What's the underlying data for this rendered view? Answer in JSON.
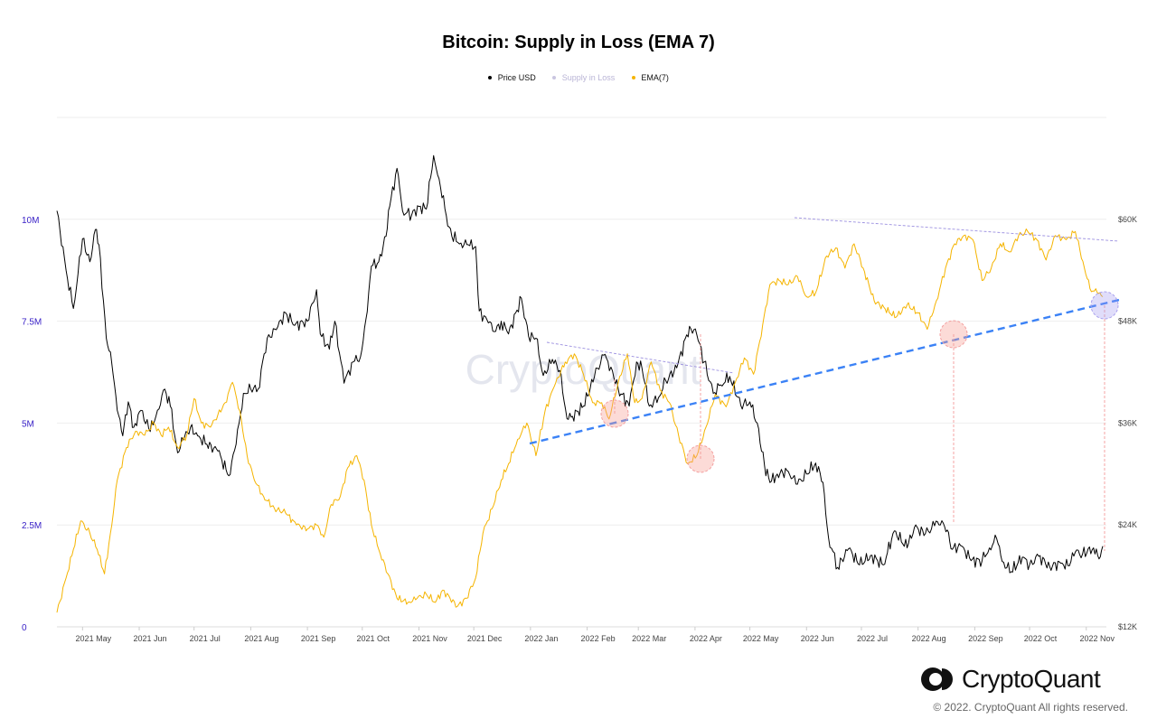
{
  "chart_data": {
    "type": "line",
    "title": "Bitcoin: Supply in Loss (EMA 7)",
    "legend": [
      {
        "name": "Price USD",
        "color": "#000000"
      },
      {
        "name": "Supply in Loss",
        "color": "#b9b4d6"
      },
      {
        "name": "EMA(7)",
        "color": "#f5b400"
      }
    ],
    "watermark": "CryptoQuant",
    "x_ticks": [
      "2021 May",
      "2021 Jun",
      "2021 Jul",
      "2021 Aug",
      "2021 Sep",
      "2021 Oct",
      "2021 Nov",
      "2021 Dec",
      "2022 Jan",
      "2022 Feb",
      "2022 Mar",
      "2022 Apr",
      "2022 May",
      "2022 Jun",
      "2022 Jul",
      "2022 Aug",
      "2022 Sep",
      "2022 Oct",
      "2022 Nov"
    ],
    "y_left": {
      "ticks": [
        "0",
        "2.5M",
        "5M",
        "7.5M",
        "10M"
      ],
      "range": [
        0,
        12500000
      ],
      "color": "#3a22c7"
    },
    "y_right": {
      "ticks": [
        "$12K",
        "$24K",
        "$36K",
        "$48K",
        "$60K"
      ],
      "range": [
        12000,
        72000
      ]
    },
    "x_range": [
      "2021-04-17",
      "2022-11-12"
    ],
    "grid": true,
    "series": [
      {
        "name": "Price USD",
        "axis": "right",
        "color": "#000000",
        "points": [
          [
            "2021-04-17",
            61000
          ],
          [
            "2021-04-22",
            54000
          ],
          [
            "2021-04-26",
            49500
          ],
          [
            "2021-05-01",
            57700
          ],
          [
            "2021-05-05",
            55000
          ],
          [
            "2021-05-08",
            58800
          ],
          [
            "2021-05-10",
            57000
          ],
          [
            "2021-05-14",
            46000
          ],
          [
            "2021-05-17",
            43000
          ],
          [
            "2021-05-20",
            37500
          ],
          [
            "2021-05-23",
            34500
          ],
          [
            "2021-05-26",
            38500
          ],
          [
            "2021-05-29",
            35500
          ],
          [
            "2021-06-02",
            37500
          ],
          [
            "2021-06-07",
            35000
          ],
          [
            "2021-06-11",
            37500
          ],
          [
            "2021-06-15",
            40000
          ],
          [
            "2021-06-18",
            38000
          ],
          [
            "2021-06-22",
            32500
          ],
          [
            "2021-06-25",
            34000
          ],
          [
            "2021-06-29",
            35500
          ],
          [
            "2021-07-03",
            34500
          ],
          [
            "2021-07-08",
            33500
          ],
          [
            "2021-07-14",
            32700
          ],
          [
            "2021-07-20",
            29800
          ],
          [
            "2021-07-24",
            33500
          ],
          [
            "2021-07-28",
            39500
          ],
          [
            "2021-08-01",
            40000
          ],
          [
            "2021-08-05",
            40000
          ],
          [
            "2021-08-10",
            46000
          ],
          [
            "2021-08-15",
            47000
          ],
          [
            "2021-08-20",
            49000
          ],
          [
            "2021-08-25",
            47500
          ],
          [
            "2021-09-01",
            48000
          ],
          [
            "2021-09-06",
            51700
          ],
          [
            "2021-09-08",
            46500
          ],
          [
            "2021-09-13",
            44700
          ],
          [
            "2021-09-16",
            48000
          ],
          [
            "2021-09-21",
            40700
          ],
          [
            "2021-09-26",
            43200
          ],
          [
            "2021-09-30",
            43800
          ],
          [
            "2021-10-03",
            48200
          ],
          [
            "2021-10-06",
            54500
          ],
          [
            "2021-10-10",
            55000
          ],
          [
            "2021-10-14",
            58000
          ],
          [
            "2021-10-16",
            61500
          ],
          [
            "2021-10-20",
            66000
          ],
          [
            "2021-10-23",
            61000
          ],
          [
            "2021-10-28",
            60500
          ],
          [
            "2021-11-01",
            61500
          ],
          [
            "2021-11-05",
            61200
          ],
          [
            "2021-11-09",
            67500
          ],
          [
            "2021-11-12",
            64800
          ],
          [
            "2021-11-16",
            60400
          ],
          [
            "2021-11-19",
            58000
          ],
          [
            "2021-11-24",
            57200
          ],
          [
            "2021-11-28",
            57000
          ],
          [
            "2021-12-02",
            56800
          ],
          [
            "2021-12-04",
            49200
          ],
          [
            "2021-12-09",
            47800
          ],
          [
            "2021-12-13",
            46800
          ],
          [
            "2021-12-16",
            48000
          ],
          [
            "2021-12-20",
            46500
          ],
          [
            "2021-12-27",
            50700
          ],
          [
            "2021-12-31",
            46200
          ],
          [
            "2022-01-04",
            46000
          ],
          [
            "2022-01-08",
            41600
          ],
          [
            "2022-01-13",
            43500
          ],
          [
            "2022-01-17",
            42200
          ],
          [
            "2022-01-21",
            36500
          ],
          [
            "2022-01-24",
            36800
          ],
          [
            "2022-01-30",
            38000
          ],
          [
            "2022-02-05",
            41500
          ],
          [
            "2022-02-10",
            44000
          ],
          [
            "2022-02-14",
            42600
          ],
          [
            "2022-02-18",
            40000
          ],
          [
            "2022-02-24",
            38000
          ],
          [
            "2022-02-28",
            43200
          ],
          [
            "2022-03-03",
            42500
          ],
          [
            "2022-03-07",
            38000
          ],
          [
            "2022-03-12",
            39000
          ],
          [
            "2022-03-16",
            41000
          ],
          [
            "2022-03-22",
            42500
          ],
          [
            "2022-03-29",
            47400
          ],
          [
            "2022-04-02",
            46400
          ],
          [
            "2022-04-06",
            43200
          ],
          [
            "2022-04-11",
            39500
          ],
          [
            "2022-04-15",
            40500
          ],
          [
            "2022-04-20",
            41500
          ],
          [
            "2022-04-26",
            38100
          ],
          [
            "2022-05-01",
            38500
          ],
          [
            "2022-05-05",
            36000
          ],
          [
            "2022-05-09",
            31000
          ],
          [
            "2022-05-12",
            29000
          ],
          [
            "2022-05-16",
            30000
          ],
          [
            "2022-05-22",
            30300
          ],
          [
            "2022-05-27",
            28800
          ],
          [
            "2022-06-01",
            30000
          ],
          [
            "2022-06-06",
            31300
          ],
          [
            "2022-06-10",
            29000
          ],
          [
            "2022-06-13",
            22500
          ],
          [
            "2022-06-18",
            19000
          ],
          [
            "2022-06-24",
            21200
          ],
          [
            "2022-06-30",
            19300
          ],
          [
            "2022-07-06",
            20400
          ],
          [
            "2022-07-13",
            19300
          ],
          [
            "2022-07-19",
            23300
          ],
          [
            "2022-07-26",
            21300
          ],
          [
            "2022-07-30",
            23700
          ],
          [
            "2022-08-05",
            23000
          ],
          [
            "2022-08-10",
            23900
          ],
          [
            "2022-08-14",
            24500
          ],
          [
            "2022-08-17",
            23400
          ],
          [
            "2022-08-19",
            21200
          ],
          [
            "2022-08-25",
            21500
          ],
          [
            "2022-08-30",
            19800
          ],
          [
            "2022-09-05",
            19800
          ],
          [
            "2022-09-09",
            21300
          ],
          [
            "2022-09-13",
            22400
          ],
          [
            "2022-09-16",
            19700
          ],
          [
            "2022-09-21",
            18500
          ],
          [
            "2022-09-27",
            20200
          ],
          [
            "2022-10-01",
            19300
          ],
          [
            "2022-10-06",
            20300
          ],
          [
            "2022-10-12",
            19100
          ],
          [
            "2022-10-18",
            19500
          ],
          [
            "2022-10-22",
            19200
          ],
          [
            "2022-10-26",
            20800
          ],
          [
            "2022-10-30",
            20600
          ],
          [
            "2022-11-05",
            21300
          ],
          [
            "2022-11-08",
            20000
          ],
          [
            "2022-11-10",
            21500
          ]
        ]
      },
      {
        "name": "EMA(7)",
        "axis": "left",
        "color": "#f5b400",
        "points": [
          [
            "2021-04-17",
            350000
          ],
          [
            "2021-04-22",
            1200000
          ],
          [
            "2021-04-26",
            1900000
          ],
          [
            "2021-04-30",
            2600000
          ],
          [
            "2021-05-05",
            2300000
          ],
          [
            "2021-05-09",
            1900000
          ],
          [
            "2021-05-13",
            1300000
          ],
          [
            "2021-05-17",
            2500000
          ],
          [
            "2021-05-20",
            3600000
          ],
          [
            "2021-05-25",
            4400000
          ],
          [
            "2021-05-30",
            4800000
          ],
          [
            "2021-06-04",
            4700000
          ],
          [
            "2021-06-09",
            5000000
          ],
          [
            "2021-06-13",
            4700000
          ],
          [
            "2021-06-17",
            4900000
          ],
          [
            "2021-06-22",
            4400000
          ],
          [
            "2021-06-27",
            4700000
          ],
          [
            "2021-07-01",
            5600000
          ],
          [
            "2021-07-05",
            5000000
          ],
          [
            "2021-07-10",
            4900000
          ],
          [
            "2021-07-14",
            5200000
          ],
          [
            "2021-07-18",
            5500000
          ],
          [
            "2021-07-22",
            6000000
          ],
          [
            "2021-07-26",
            5300000
          ],
          [
            "2021-07-30",
            4200000
          ],
          [
            "2021-08-03",
            3600000
          ],
          [
            "2021-08-08",
            3200000
          ],
          [
            "2021-08-14",
            2900000
          ],
          [
            "2021-08-20",
            2800000
          ],
          [
            "2021-08-26",
            2500000
          ],
          [
            "2021-09-01",
            2400000
          ],
          [
            "2021-09-06",
            2500000
          ],
          [
            "2021-09-10",
            2200000
          ],
          [
            "2021-09-14",
            3000000
          ],
          [
            "2021-09-19",
            3200000
          ],
          [
            "2021-09-23",
            3900000
          ],
          [
            "2021-09-28",
            4200000
          ],
          [
            "2021-10-02",
            3600000
          ],
          [
            "2021-10-06",
            2500000
          ],
          [
            "2021-10-10",
            1900000
          ],
          [
            "2021-10-15",
            1300000
          ],
          [
            "2021-10-20",
            700000
          ],
          [
            "2021-10-26",
            600000
          ],
          [
            "2021-10-31",
            700000
          ],
          [
            "2021-11-05",
            800000
          ],
          [
            "2021-11-10",
            600000
          ],
          [
            "2021-11-14",
            900000
          ],
          [
            "2021-11-18",
            700000
          ],
          [
            "2021-11-22",
            500000
          ],
          [
            "2021-11-27",
            700000
          ],
          [
            "2021-12-02",
            1200000
          ],
          [
            "2021-12-06",
            2300000
          ],
          [
            "2021-12-11",
            2900000
          ],
          [
            "2021-12-16",
            3600000
          ],
          [
            "2021-12-20",
            4000000
          ],
          [
            "2021-12-25",
            4600000
          ],
          [
            "2021-12-30",
            5000000
          ],
          [
            "2022-01-04",
            4200000
          ],
          [
            "2022-01-09",
            5300000
          ],
          [
            "2022-01-14",
            5900000
          ],
          [
            "2022-01-20",
            6500000
          ],
          [
            "2022-01-25",
            6700000
          ],
          [
            "2022-01-30",
            6200000
          ],
          [
            "2022-02-04",
            5500000
          ],
          [
            "2022-02-09",
            5500000
          ],
          [
            "2022-02-13",
            5100000
          ],
          [
            "2022-02-18",
            6000000
          ],
          [
            "2022-02-23",
            6700000
          ],
          [
            "2022-02-27",
            5500000
          ],
          [
            "2022-03-03",
            5600000
          ],
          [
            "2022-03-08",
            6500000
          ],
          [
            "2022-03-13",
            5800000
          ],
          [
            "2022-03-18",
            5500000
          ],
          [
            "2022-03-23",
            4700000
          ],
          [
            "2022-03-28",
            4000000
          ],
          [
            "2022-04-02",
            4200000
          ],
          [
            "2022-04-07",
            4900000
          ],
          [
            "2022-04-12",
            5700000
          ],
          [
            "2022-04-18",
            5400000
          ],
          [
            "2022-04-23",
            6000000
          ],
          [
            "2022-04-28",
            6600000
          ],
          [
            "2022-05-03",
            6200000
          ],
          [
            "2022-05-08",
            7400000
          ],
          [
            "2022-05-12",
            8400000
          ],
          [
            "2022-05-17",
            8500000
          ],
          [
            "2022-05-22",
            8400000
          ],
          [
            "2022-05-27",
            8600000
          ],
          [
            "2022-06-01",
            8100000
          ],
          [
            "2022-06-06",
            8200000
          ],
          [
            "2022-06-12",
            9100000
          ],
          [
            "2022-06-17",
            9300000
          ],
          [
            "2022-06-22",
            8800000
          ],
          [
            "2022-06-27",
            9400000
          ],
          [
            "2022-07-02",
            8800000
          ],
          [
            "2022-07-08",
            8000000
          ],
          [
            "2022-07-14",
            7800000
          ],
          [
            "2022-07-20",
            7600000
          ],
          [
            "2022-07-26",
            7900000
          ],
          [
            "2022-08-01",
            7700000
          ],
          [
            "2022-08-06",
            7300000
          ],
          [
            "2022-08-11",
            8000000
          ],
          [
            "2022-08-16",
            8800000
          ],
          [
            "2022-08-21",
            9400000
          ],
          [
            "2022-08-26",
            9600000
          ],
          [
            "2022-08-31",
            9500000
          ],
          [
            "2022-09-05",
            8500000
          ],
          [
            "2022-09-10",
            8800000
          ],
          [
            "2022-09-15",
            9400000
          ],
          [
            "2022-09-20",
            9200000
          ],
          [
            "2022-09-25",
            9600000
          ],
          [
            "2022-09-30",
            9700000
          ],
          [
            "2022-10-05",
            9500000
          ],
          [
            "2022-10-10",
            9000000
          ],
          [
            "2022-10-15",
            9600000
          ],
          [
            "2022-10-21",
            9500000
          ],
          [
            "2022-10-26",
            9700000
          ],
          [
            "2022-10-31",
            8800000
          ],
          [
            "2022-11-03",
            8300000
          ],
          [
            "2022-11-07",
            8200000
          ],
          [
            "2022-11-10",
            8100000
          ]
        ]
      }
    ]
  },
  "brand": {
    "name": "CryptoQuant",
    "copyright": "© 2022. CryptoQuant All rights reserved."
  }
}
